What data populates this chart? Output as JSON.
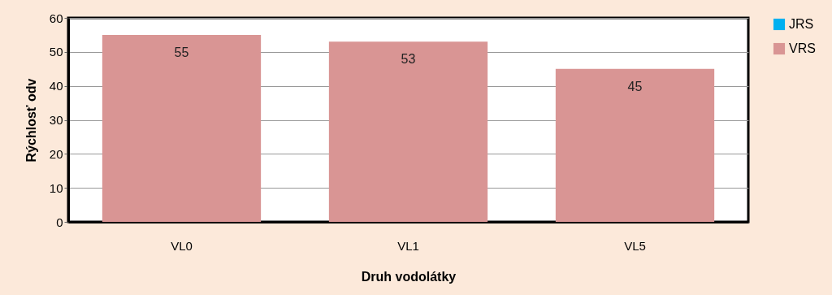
{
  "chart_data": {
    "type": "bar",
    "xlabel": "Druh vodolátky",
    "ylabel": "Rýchlosť odv",
    "categories": [
      "VL0",
      "VL1",
      "VL5"
    ],
    "series": [
      {
        "name": "JRS",
        "color": "#00b0f0",
        "values": [
          null,
          null,
          null
        ]
      },
      {
        "name": "VRS",
        "color": "#d99594",
        "values": [
          55,
          53,
          45
        ],
        "value_labels": [
          "55",
          "53",
          "45"
        ]
      }
    ],
    "ylim": [
      0,
      60
    ],
    "yticks": [
      0,
      10,
      20,
      30,
      40,
      50,
      60
    ],
    "grid": "y",
    "legend": "top right"
  }
}
